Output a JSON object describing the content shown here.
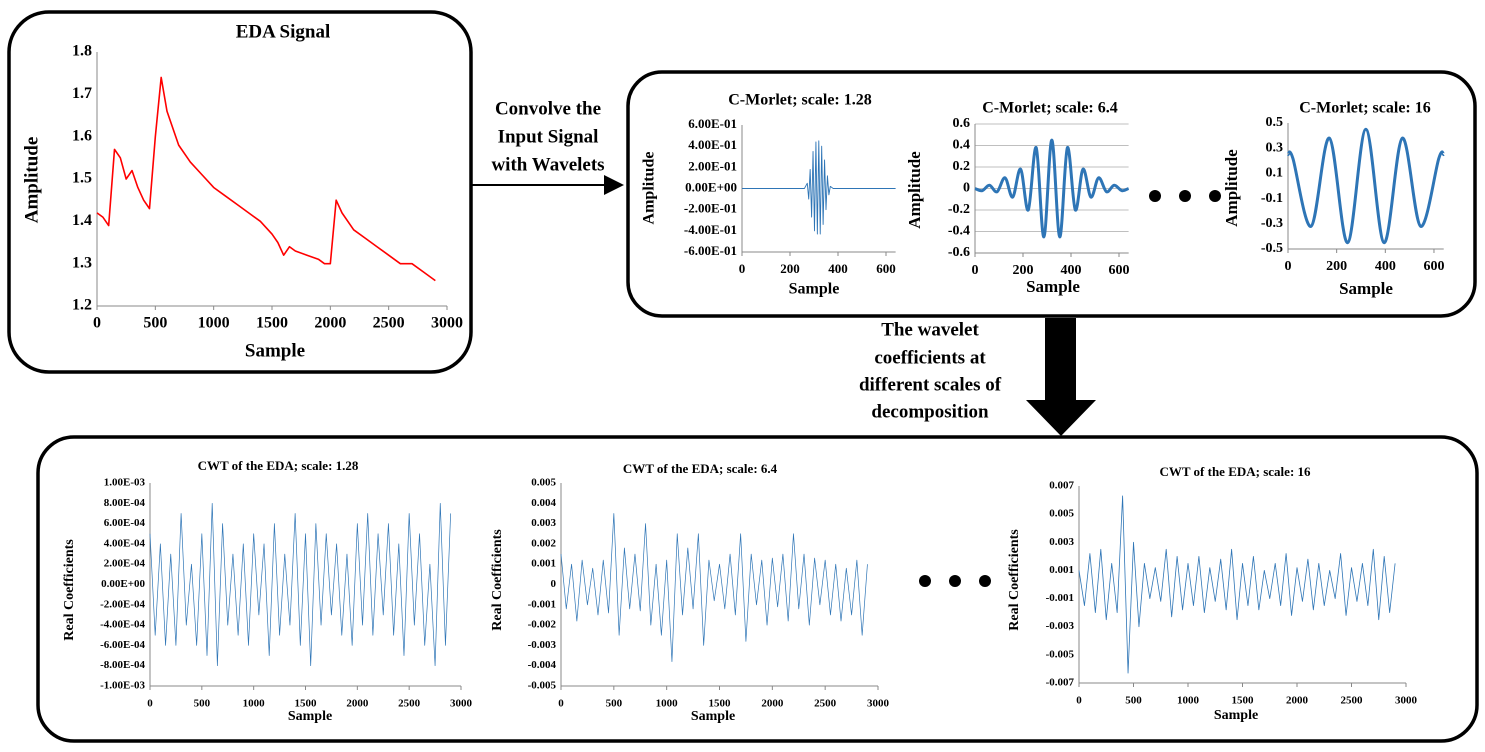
{
  "labels": {
    "convolve": [
      "Convolve the",
      "Input Signal",
      "with Wavelets"
    ],
    "coefficients": [
      "The wavelet",
      "coefficients at",
      "different scales of",
      "decomposition"
    ]
  },
  "chart_data": [
    {
      "type": "line",
      "title": "EDA Signal",
      "x_label": "Sample",
      "y_label": "Amplitude",
      "color": "#ff0000",
      "grid": false,
      "x": [
        0,
        50,
        100,
        150,
        200,
        250,
        300,
        350,
        400,
        450,
        500,
        550,
        600,
        700,
        800,
        900,
        1000,
        1100,
        1200,
        1300,
        1400,
        1500,
        1550,
        1600,
        1650,
        1700,
        1800,
        1900,
        1950,
        2000,
        2050,
        2100,
        2200,
        2300,
        2400,
        2500,
        2600,
        2700,
        2800,
        2900
      ],
      "values": [
        1.42,
        1.41,
        1.39,
        1.57,
        1.55,
        1.5,
        1.52,
        1.48,
        1.45,
        1.43,
        1.6,
        1.74,
        1.66,
        1.58,
        1.54,
        1.51,
        1.48,
        1.46,
        1.44,
        1.42,
        1.4,
        1.37,
        1.35,
        1.32,
        1.34,
        1.33,
        1.32,
        1.31,
        1.3,
        1.3,
        1.45,
        1.42,
        1.38,
        1.36,
        1.34,
        1.32,
        1.3,
        1.3,
        1.28,
        1.26
      ],
      "xlim": [
        0,
        3000
      ],
      "xticks": [
        0,
        500,
        1000,
        1500,
        2000,
        2500,
        3000
      ],
      "ylim": [
        1.2,
        1.8
      ],
      "yticks": [
        1.2,
        1.3,
        1.4,
        1.5,
        1.6,
        1.7,
        1.8
      ]
    },
    {
      "type": "line",
      "title": "C-Morlet; scale: 1.28",
      "x_label": "Sample",
      "y_label": "Amplitude",
      "color": "#2e75b6",
      "grid": false,
      "x": [
        0,
        260,
        272,
        278,
        284,
        290,
        296,
        302,
        308,
        314,
        320,
        326,
        332,
        338,
        344,
        350,
        356,
        362,
        368,
        380,
        640
      ],
      "values": [
        0,
        0,
        0.05,
        -0.1,
        0.18,
        -0.27,
        0.35,
        -0.4,
        0.44,
        -0.43,
        0.45,
        -0.43,
        0.4,
        -0.34,
        0.27,
        -0.2,
        0.12,
        -0.06,
        0.02,
        0,
        0
      ],
      "xlim": [
        0,
        640
      ],
      "xticks": [
        0,
        200,
        400,
        600
      ],
      "ylim": [
        -0.6,
        0.6
      ],
      "yticks": [
        {
          "value": -0.6,
          "label": "-6.00E-01"
        },
        {
          "value": -0.4,
          "label": "-4.00E-01"
        },
        {
          "value": -0.2,
          "label": "-2.00E-01"
        },
        {
          "value": 0,
          "label": "0.00E+00"
        },
        {
          "value": 0.2,
          "label": "2.00E-01"
        },
        {
          "value": 0.4,
          "label": "4.00E-01"
        },
        {
          "value": 0.6,
          "label": "6.00E-01"
        }
      ]
    },
    {
      "type": "line",
      "title": "C-Morlet; scale: 6.4",
      "x_label": "Sample",
      "y_label": "Amplitude",
      "color": "#2e75b6",
      "grid": true,
      "x": [
        0,
        30,
        60,
        92,
        125,
        157,
        190,
        222,
        255,
        287,
        320,
        353,
        385,
        418,
        450,
        483,
        515,
        548,
        580,
        612,
        640
      ],
      "values": [
        0,
        -0.02,
        0.03,
        -0.03,
        0.1,
        -0.08,
        0.18,
        -0.2,
        0.38,
        -0.45,
        0.45,
        -0.45,
        0.38,
        -0.2,
        0.18,
        -0.08,
        0.1,
        -0.03,
        0.03,
        -0.02,
        0
      ],
      "xlim": [
        0,
        640
      ],
      "xticks": [
        0,
        200,
        400,
        600
      ],
      "ylim": [
        -0.6,
        0.6
      ],
      "yticks": [
        -0.6,
        -0.4,
        -0.2,
        0,
        0.2,
        0.4,
        0.6
      ]
    },
    {
      "type": "line",
      "title": "C-Morlet; scale: 16",
      "x_label": "Sample",
      "y_label": "Amplitude",
      "color": "#2e75b6",
      "grid": false,
      "x": [
        0,
        20,
        95,
        170,
        245,
        320,
        395,
        470,
        545,
        620,
        640
      ],
      "values": [
        0.25,
        0.22,
        -0.32,
        0.38,
        -0.45,
        0.45,
        -0.45,
        0.38,
        -0.32,
        0.22,
        0.25
      ],
      "xlim": [
        0,
        640
      ],
      "xticks": [
        0,
        200,
        400,
        600
      ],
      "ylim": [
        -0.5,
        0.5
      ],
      "yticks": [
        -0.5,
        -0.3,
        -0.1,
        0.1,
        0.3,
        0.5
      ]
    },
    {
      "type": "line",
      "title": "CWT  of the EDA; scale: 1.28",
      "x_label": "Sample",
      "y_label": "Real Coefficients",
      "color": "#2e75b6",
      "grid": false,
      "x": [
        0,
        50,
        100,
        150,
        200,
        250,
        300,
        350,
        400,
        450,
        500,
        550,
        600,
        650,
        700,
        750,
        800,
        850,
        900,
        950,
        1000,
        1050,
        1100,
        1150,
        1200,
        1250,
        1300,
        1350,
        1400,
        1450,
        1500,
        1550,
        1600,
        1650,
        1700,
        1750,
        1800,
        1850,
        1900,
        1950,
        2000,
        2050,
        2100,
        2150,
        2200,
        2250,
        2300,
        2350,
        2400,
        2450,
        2500,
        2550,
        2600,
        2650,
        2700,
        2750,
        2800,
        2850,
        2900
      ],
      "values": [
        0.0005,
        -0.0005,
        0.0004,
        -0.0006,
        0.0003,
        -0.0006,
        0.0007,
        -0.0004,
        0.0002,
        -0.0006,
        0.0005,
        -0.0007,
        0.0008,
        -0.0008,
        0.0006,
        -0.0004,
        0.0003,
        -0.0005,
        0.0004,
        -0.0006,
        0.0005,
        -0.0003,
        0.0004,
        -0.0007,
        0.0006,
        -0.0005,
        0.0003,
        -0.0004,
        0.0007,
        -0.0006,
        0.0005,
        -0.0008,
        0.0006,
        -0.0004,
        0.0005,
        -0.0003,
        0.0004,
        -0.0005,
        0.0003,
        -0.0006,
        0.0006,
        -0.0004,
        0.0007,
        -0.0005,
        0.0005,
        -0.0003,
        0.0006,
        -0.0005,
        0.0004,
        -0.0007,
        0.0007,
        -0.0004,
        0.0005,
        -0.0006,
        0.0002,
        -0.0008,
        0.0008,
        -0.0006,
        0.0007
      ],
      "xlim": [
        0,
        3000
      ],
      "xticks": [
        0,
        500,
        1000,
        1500,
        2000,
        2500,
        3000
      ],
      "ylim": [
        -0.001,
        0.001
      ],
      "yticks": [
        {
          "value": -0.001,
          "label": "-1.00E-03"
        },
        {
          "value": -0.0008,
          "label": "-8.00E-04"
        },
        {
          "value": -0.0006,
          "label": "-6.00E-04"
        },
        {
          "value": -0.0004,
          "label": "-4.00E-04"
        },
        {
          "value": -0.0002,
          "label": "-2.00E-04"
        },
        {
          "value": 0,
          "label": "0.00E+00"
        },
        {
          "value": 0.0002,
          "label": "2.00E-04"
        },
        {
          "value": 0.0004,
          "label": "4.00E-04"
        },
        {
          "value": 0.0006,
          "label": "6.00E-04"
        },
        {
          "value": 0.0008,
          "label": "8.00E-04"
        },
        {
          "value": 0.001,
          "label": "1.00E-03"
        }
      ]
    },
    {
      "type": "line",
      "title": "CWT  of the EDA; scale: 6.4",
      "x_label": "Sample",
      "y_label": "Real Coefficients",
      "color": "#2e75b6",
      "grid": false,
      "x": [
        0,
        50,
        100,
        150,
        200,
        250,
        300,
        350,
        400,
        450,
        500,
        550,
        600,
        650,
        700,
        750,
        800,
        850,
        900,
        950,
        1000,
        1050,
        1100,
        1150,
        1200,
        1250,
        1300,
        1350,
        1400,
        1450,
        1500,
        1550,
        1600,
        1650,
        1700,
        1750,
        1800,
        1850,
        1900,
        1950,
        2000,
        2050,
        2100,
        2150,
        2200,
        2250,
        2300,
        2350,
        2400,
        2450,
        2500,
        2550,
        2600,
        2650,
        2700,
        2750,
        2800,
        2850,
        2900
      ],
      "values": [
        0.0015,
        -0.0012,
        0.001,
        -0.0018,
        0.0012,
        -0.001,
        0.0008,
        -0.0015,
        0.0012,
        -0.0014,
        0.0035,
        -0.0025,
        0.0018,
        -0.0012,
        0.0015,
        -0.0013,
        0.003,
        -0.002,
        0.001,
        -0.0025,
        0.0012,
        -0.0038,
        0.0025,
        -0.0015,
        0.0018,
        -0.0012,
        0.0025,
        -0.003,
        0.0012,
        -0.0008,
        0.001,
        -0.0012,
        0.0015,
        -0.0015,
        0.0025,
        -0.0028,
        0.0015,
        -0.001,
        0.0012,
        -0.002,
        0.0013,
        -0.0011,
        0.0015,
        -0.0018,
        0.0025,
        -0.0012,
        0.0015,
        -0.002,
        0.0013,
        -0.001,
        0.0012,
        -0.0015,
        0.001,
        -0.0018,
        0.0008,
        -0.0015,
        0.0012,
        -0.0025,
        0.001
      ],
      "xlim": [
        0,
        3000
      ],
      "xticks": [
        0,
        500,
        1000,
        1500,
        2000,
        2500,
        3000
      ],
      "ylim": [
        -0.005,
        0.005
      ],
      "yticks": [
        -0.005,
        -0.004,
        -0.003,
        -0.002,
        -0.001,
        0,
        0.001,
        0.002,
        0.003,
        0.004,
        0.005
      ]
    },
    {
      "type": "line",
      "title": "CWT  of the EDA; scale: 16",
      "x_label": "Sample",
      "y_label": "Real Coefficients",
      "color": "#2e75b6",
      "grid": false,
      "x": [
        0,
        50,
        100,
        150,
        200,
        250,
        300,
        350,
        400,
        450,
        500,
        550,
        600,
        650,
        700,
        750,
        800,
        850,
        900,
        950,
        1000,
        1050,
        1100,
        1150,
        1200,
        1250,
        1300,
        1350,
        1400,
        1450,
        1500,
        1550,
        1600,
        1650,
        1700,
        1750,
        1800,
        1850,
        1900,
        1950,
        2000,
        2050,
        2100,
        2150,
        2200,
        2250,
        2300,
        2350,
        2400,
        2450,
        2500,
        2550,
        2600,
        2650,
        2700,
        2750,
        2800,
        2850,
        2900
      ],
      "values": [
        0.001,
        -0.0015,
        0.0022,
        -0.002,
        0.0025,
        -0.0025,
        0.0015,
        -0.002,
        0.0063,
        -0.0063,
        0.003,
        -0.003,
        0.0015,
        -0.001,
        0.0012,
        -0.0012,
        0.0025,
        -0.0023,
        0.002,
        -0.0018,
        0.0015,
        -0.0015,
        0.002,
        -0.002,
        0.0012,
        -0.0012,
        0.0018,
        -0.0018,
        0.0025,
        -0.0025,
        0.0015,
        -0.0015,
        0.002,
        -0.0018,
        0.001,
        -0.001,
        0.0015,
        -0.0015,
        0.0022,
        -0.0022,
        0.0012,
        -0.0012,
        0.0018,
        -0.0018,
        0.0015,
        -0.0015,
        0.001,
        -0.001,
        0.0022,
        -0.0022,
        0.0012,
        -0.0012,
        0.0015,
        -0.0015,
        0.0025,
        -0.0025,
        0.002,
        -0.002,
        0.0015
      ],
      "xlim": [
        0,
        3000
      ],
      "xticks": [
        0,
        500,
        1000,
        1500,
        2000,
        2500,
        3000
      ],
      "ylim": [
        -0.007,
        0.007
      ],
      "yticks": [
        -0.007,
        -0.005,
        -0.003,
        -0.001,
        0.001,
        0.003,
        0.005,
        0.007
      ]
    }
  ]
}
